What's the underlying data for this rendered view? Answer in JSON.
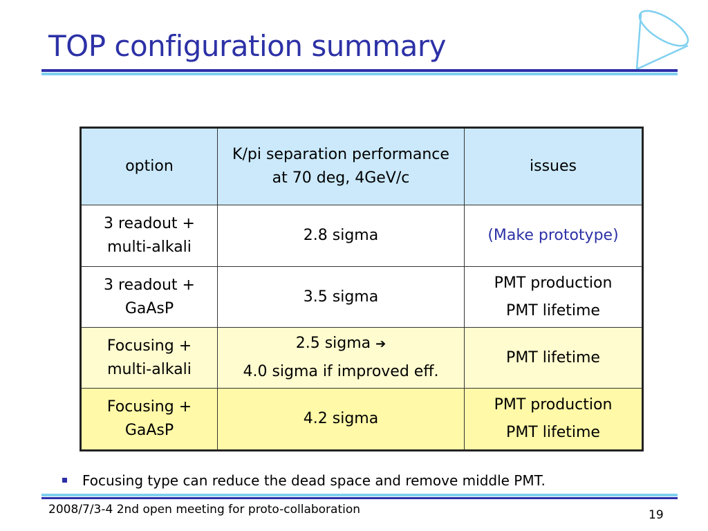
{
  "slide": {
    "title": "TOP configuration summary",
    "page_number": "19",
    "footer": "2008/7/3-4 2nd open meeting for proto-collaboration"
  },
  "table": {
    "headers": {
      "option": "option",
      "performance": "K/pi separation performance at 70 deg, 4GeV/c",
      "issues": "issues"
    },
    "rows": [
      {
        "option": "3 readout + multi-alkali",
        "performance": [
          "2.8 sigma"
        ],
        "issues": [
          "(Make prototype)"
        ]
      },
      {
        "option": "3 readout + GaAsP",
        "performance": [
          "3.5 sigma"
        ],
        "issues": [
          "PMT production",
          "PMT lifetime"
        ]
      },
      {
        "option": "Focusing + multi-alkali",
        "performance": [
          "2.5 sigma",
          "4.0 sigma if improved eff."
        ],
        "issues": [
          "PMT lifetime"
        ]
      },
      {
        "option": "Focusing + GaAsP",
        "performance": [
          "4.2 sigma"
        ],
        "issues": [
          "PMT production",
          "PMT lifetime"
        ]
      }
    ],
    "arrow_glyph": "➔"
  },
  "bullets": [
    "Focusing type can reduce the dead space and remove middle PMT."
  ],
  "colors": {
    "title": "#2c31a6",
    "rule_dark": "#2d2fa8",
    "rule_light": "#7fd0f0",
    "header_bg": "#cbe9fb",
    "row_highlight_1": "#fffccf",
    "row_highlight_2": "#fff9a8"
  },
  "icons": {
    "logo": "cone-logo-icon",
    "bullet": "square-bullet-icon"
  }
}
